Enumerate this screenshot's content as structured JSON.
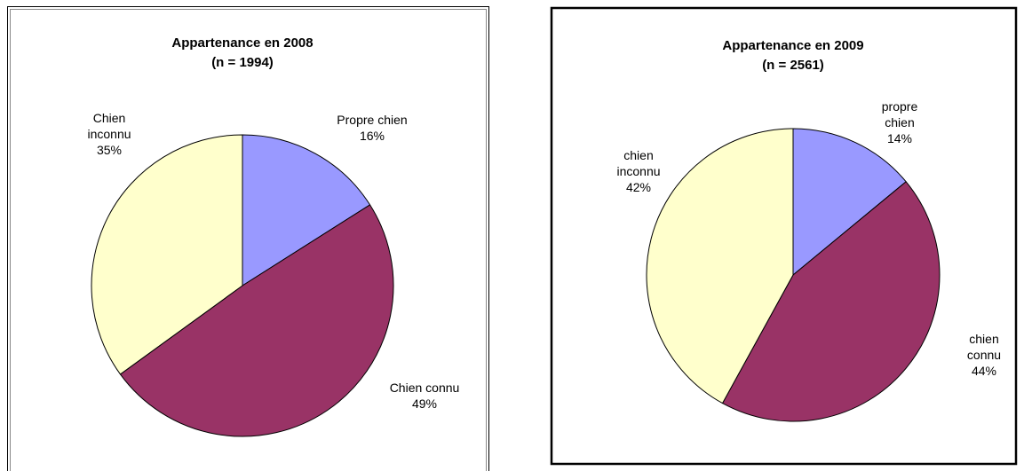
{
  "chart_data": [
    {
      "type": "pie",
      "title": "Appartenance en 2008",
      "subtitle": "(n = 1994)",
      "categories": [
        "Propre chien",
        "Chien connu",
        "Chien inconnu"
      ],
      "values": [
        16,
        49,
        35
      ],
      "value_labels": [
        "16%",
        "49%",
        "35%"
      ],
      "colors": [
        "#9999ff",
        "#993366",
        "#ffffcc"
      ]
    },
    {
      "type": "pie",
      "title": "Appartenance en 2009",
      "subtitle": "(n = 2561)",
      "categories": [
        "propre chien",
        "chien connu",
        "chien inconnu"
      ],
      "values": [
        14,
        44,
        42
      ],
      "value_labels": [
        "14%",
        "44%",
        "42%"
      ],
      "colors": [
        "#9999ff",
        "#993366",
        "#ffffcc"
      ]
    }
  ]
}
